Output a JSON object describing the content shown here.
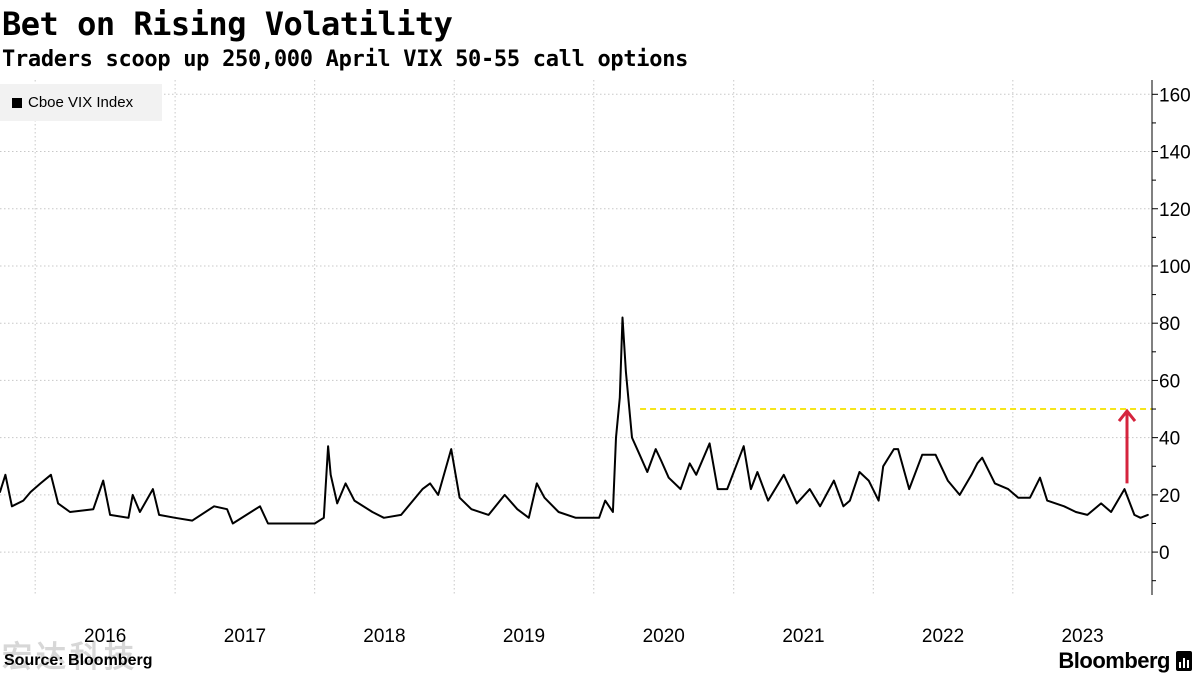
{
  "header": {
    "title": "Bet on Rising Volatility",
    "subtitle": "Traders scoop up 250,000 April VIX 50-55 call options"
  },
  "footer": {
    "source": "Source: Bloomberg",
    "brand": "Bloomberg",
    "watermark": "宏达科技"
  },
  "colors": {
    "series": "#000000",
    "threshold": "#f5e51b",
    "arrow": "#d5243d",
    "grid": "#c8c8c8",
    "axis": "#000000"
  },
  "chart_data": {
    "type": "line",
    "title": "Bet on Rising Volatility",
    "subtitle": "Traders scoop up 250,000 April VIX 50-55 call options",
    "legend": {
      "placement": "top-left",
      "entries": [
        "Cboe VIX Index"
      ]
    },
    "grid": true,
    "x_axis": {
      "domain": [
        "2015-10-01",
        "2023-12-31"
      ],
      "tick_labels": [
        "2016",
        "2017",
        "2018",
        "2019",
        "2020",
        "2021",
        "2022",
        "2023"
      ]
    },
    "y_axis": {
      "side": "right",
      "domain": [
        -15,
        165
      ],
      "ticks": [
        0,
        20,
        40,
        60,
        80,
        100,
        120,
        140,
        160
      ]
    },
    "series": [
      {
        "name": "Cboe VIX Index",
        "x": [
          "2015-10-01",
          "2015-10-15",
          "2015-11-01",
          "2015-12-01",
          "2015-12-20",
          "2016-01-15",
          "2016-02-11",
          "2016-03-01",
          "2016-04-01",
          "2016-06-01",
          "2016-06-27",
          "2016-07-15",
          "2016-09-01",
          "2016-09-12",
          "2016-10-01",
          "2016-11-04",
          "2016-11-20",
          "2017-01-01",
          "2017-02-15",
          "2017-04-13",
          "2017-05-17",
          "2017-06-01",
          "2017-08-11",
          "2017-09-01",
          "2017-11-01",
          "2018-01-01",
          "2018-01-25",
          "2018-02-05",
          "2018-02-12",
          "2018-03-01",
          "2018-03-23",
          "2018-04-15",
          "2018-06-01",
          "2018-07-01",
          "2018-08-15",
          "2018-10-10",
          "2018-10-30",
          "2018-11-20",
          "2018-12-24",
          "2019-01-15",
          "2019-02-15",
          "2019-04-01",
          "2019-05-13",
          "2019-06-15",
          "2019-07-15",
          "2019-08-05",
          "2019-08-25",
          "2019-10-01",
          "2019-11-15",
          "2020-01-15",
          "2020-01-31",
          "2020-02-20",
          "2020-02-28",
          "2020-03-09",
          "2020-03-16",
          "2020-03-25",
          "2020-04-10",
          "2020-04-30",
          "2020-05-20",
          "2020-06-11",
          "2020-06-25",
          "2020-07-15",
          "2020-08-15",
          "2020-09-08",
          "2020-09-25",
          "2020-10-30",
          "2020-11-20",
          "2020-12-15",
          "2021-01-27",
          "2021-02-15",
          "2021-03-04",
          "2021-04-01",
          "2021-05-12",
          "2021-06-15",
          "2021-07-19",
          "2021-08-15",
          "2021-09-20",
          "2021-10-15",
          "2021-11-01",
          "2021-11-26",
          "2021-12-20",
          "2022-01-15",
          "2022-01-27",
          "2022-02-24",
          "2022-03-07",
          "2022-04-05",
          "2022-05-09",
          "2022-06-13",
          "2022-07-15",
          "2022-08-15",
          "2022-09-15",
          "2022-09-30",
          "2022-10-13",
          "2022-11-15",
          "2022-12-20",
          "2023-01-15",
          "2023-02-15",
          "2023-03-13",
          "2023-04-01",
          "2023-05-15",
          "2023-06-15",
          "2023-07-15",
          "2023-08-20",
          "2023-09-15",
          "2023-10-20",
          "2023-11-15",
          "2023-12-01",
          "2023-12-20"
        ],
        "y": [
          21,
          27,
          16,
          18,
          21,
          24,
          27,
          17,
          14,
          15,
          25,
          13,
          12,
          20,
          14,
          22,
          13,
          12,
          11,
          16,
          15,
          10,
          16,
          10,
          10,
          10,
          12,
          37,
          27,
          17,
          24,
          18,
          14,
          12,
          13,
          22,
          24,
          20,
          36,
          19,
          15,
          13,
          20,
          15,
          12,
          24,
          19,
          14,
          12,
          12,
          18,
          14,
          40,
          54,
          82,
          63,
          40,
          34,
          28,
          36,
          32,
          26,
          22,
          31,
          27,
          38,
          22,
          22,
          37,
          22,
          28,
          18,
          27,
          17,
          22,
          16,
          25,
          16,
          18,
          28,
          25,
          18,
          30,
          36,
          36,
          22,
          34,
          34,
          25,
          20,
          27,
          31,
          33,
          24,
          22,
          19,
          19,
          26,
          18,
          16,
          14,
          13,
          17,
          14,
          22,
          13,
          12,
          13
        ]
      }
    ],
    "annotations": [
      {
        "type": "horizontal-line",
        "y": 50,
        "x_start": "2020-05-01",
        "x_end": "2023-12-31",
        "style": "dashed",
        "color": "#f5e51b"
      },
      {
        "type": "arrow",
        "x": "2023-12-31",
        "y_from": 24,
        "y_to": 50,
        "color": "#d5243d"
      }
    ]
  }
}
